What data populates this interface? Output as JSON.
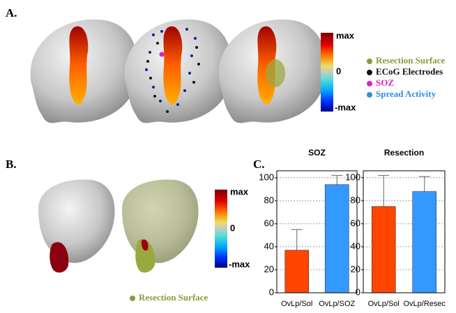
{
  "panel_a": {
    "label": "A.",
    "colorbar": [
      "max",
      "0",
      "-max"
    ],
    "legend": [
      {
        "name": "Resection Surface",
        "color": "#8b9a3a"
      },
      {
        "name": "ECoG Electrodes",
        "color": "#111111"
      },
      {
        "name": "SOZ",
        "color": "#e020c0"
      },
      {
        "name": "Spread Activity",
        "color": "#2e8fe0"
      }
    ]
  },
  "panel_b": {
    "label": "B.",
    "colorbar": [
      "max",
      "0",
      "-max"
    ],
    "legend": [
      {
        "name": "Resection Surface",
        "color": "#8b9a3a"
      }
    ]
  },
  "panel_c": {
    "label": "C."
  },
  "chart_data": [
    {
      "type": "bar",
      "title": "SOZ",
      "categories": [
        "OvLp/Sol",
        "OvLp/SOZ"
      ],
      "values": [
        37,
        94
      ],
      "errors": [
        18,
        8
      ],
      "colors": [
        "#ff4500",
        "#3399ff"
      ],
      "ylim": [
        0,
        106
      ],
      "yticks": [
        0,
        20,
        40,
        60,
        80,
        100
      ],
      "grid": true
    },
    {
      "type": "bar",
      "title": "Resection",
      "categories": [
        "OvLp/Sol",
        "OvLp/Resec"
      ],
      "values": [
        75,
        88
      ],
      "errors": [
        27,
        13
      ],
      "colors": [
        "#ff4500",
        "#3399ff"
      ],
      "ylim": [
        0,
        106
      ],
      "yticks": [
        0,
        20,
        40,
        60,
        80,
        100
      ],
      "grid": true
    }
  ]
}
